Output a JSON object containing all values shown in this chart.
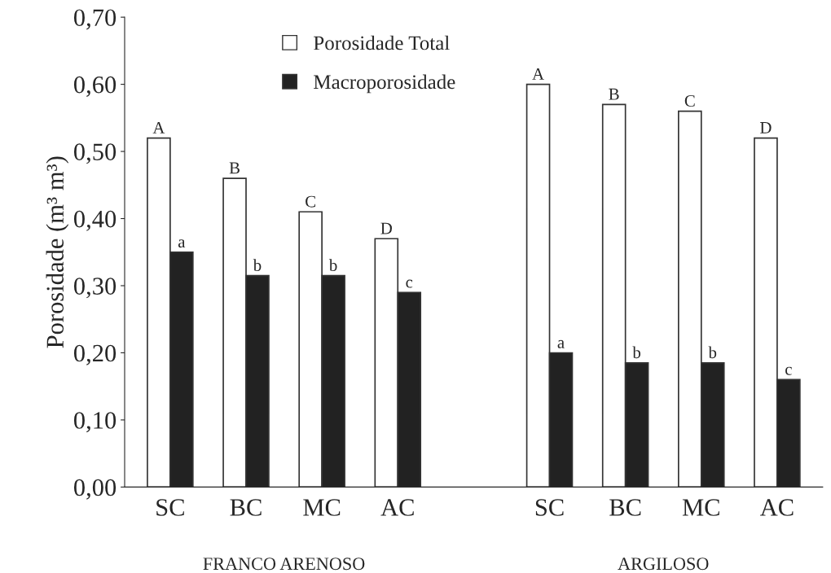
{
  "chart_data": {
    "type": "bar",
    "ylabel": "Porosidade (m³ m³)",
    "categories": [
      "SC",
      "BC",
      "MC",
      "AC",
      null,
      "SC",
      "BC",
      "MC",
      "AC"
    ],
    "series": [
      {
        "name": "Porosidade Total",
        "color": "#ffffff",
        "values": [
          0.52,
          0.46,
          0.41,
          0.37,
          null,
          0.6,
          0.57,
          0.56,
          0.52
        ],
        "value_labels": [
          "A",
          "B",
          "C",
          "D",
          null,
          "A",
          "B",
          "C",
          "D"
        ]
      },
      {
        "name": "Macroporosidade",
        "color": "#222222",
        "values": [
          0.35,
          0.315,
          0.315,
          0.29,
          null,
          0.2,
          0.185,
          0.185,
          0.16
        ],
        "value_labels": [
          "a",
          "b",
          "b",
          "c",
          null,
          "a",
          "b",
          "b",
          "c"
        ]
      }
    ],
    "ylim": [
      0,
      0.7
    ],
    "yticks": [
      {
        "value": 0,
        "label": "0,00"
      },
      {
        "value": 0.1,
        "label": "0,10"
      },
      {
        "value": 0.2,
        "label": "0,20"
      },
      {
        "value": 0.3,
        "label": "0,30"
      },
      {
        "value": 0.4,
        "label": "0,40"
      },
      {
        "value": 0.5,
        "label": "0,50"
      },
      {
        "value": 0.6,
        "label": "0,60"
      },
      {
        "value": 0.7,
        "label": "0,70"
      }
    ],
    "annotations": [
      "FRANCO ARENOSO",
      "ARGILOSO"
    ],
    "legend": "top left",
    "grid": false
  }
}
